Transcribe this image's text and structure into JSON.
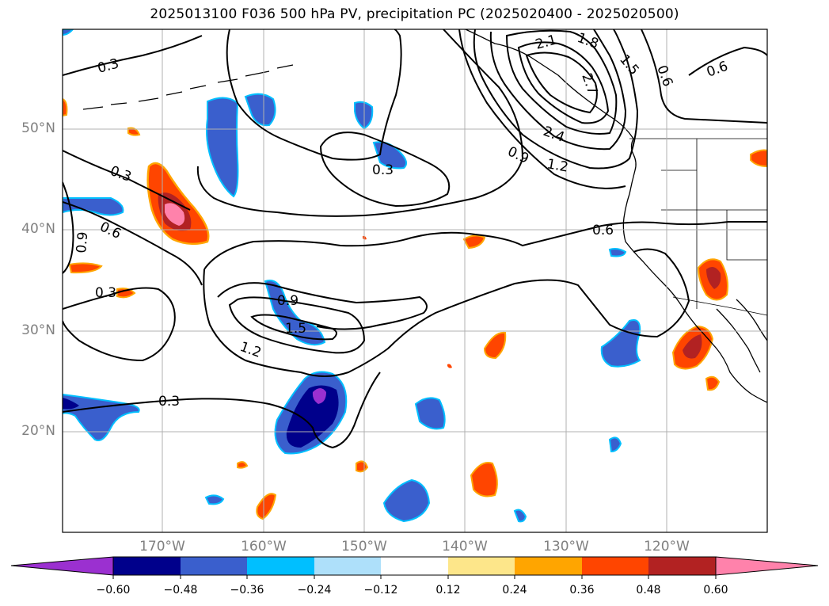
{
  "title": "2025013100 F036 500 hPa PV, precipitation PC (2025020400 - 2025020500)",
  "axes": {
    "lat_labels": [
      "50°N",
      "40°N",
      "30°N",
      "20°N"
    ],
    "lon_labels": [
      "170°W",
      "160°W",
      "150°W",
      "140°W",
      "130°W",
      "120°W"
    ]
  },
  "contour_labels": [
    "0.3",
    "0.3",
    "0.3",
    "0.3",
    "0.3",
    "0.6",
    "0.6",
    "0.6",
    "0.9",
    "0.9",
    "0.9",
    "1.2",
    "1.2",
    "1.5",
    "1.5",
    "1.8",
    "2.1",
    "2.4",
    "2.7"
  ],
  "colorbar": {
    "ticks": [
      "−0.60",
      "−0.48",
      "−0.36",
      "−0.24",
      "−0.12",
      "0.12",
      "0.24",
      "0.36",
      "0.48",
      "0.60"
    ],
    "colors": [
      "#9b30d0",
      "#00008b",
      "#3a5fcd",
      "#00bfff",
      "#aee0fa",
      "#ffffff",
      "#fde68a",
      "#ffa500",
      "#ff4500",
      "#b22222",
      "#ff82ab"
    ]
  }
}
